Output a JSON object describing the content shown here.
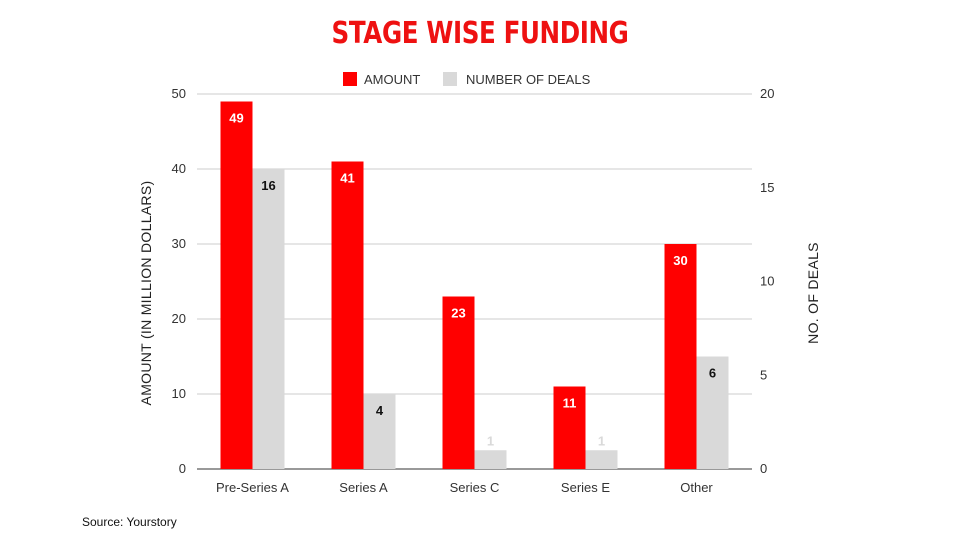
{
  "title": "STAGE WISE FUNDING",
  "source": "Source: Yourstory",
  "colors": {
    "amount": "#ff0000",
    "deals": "#d9d9d9",
    "title": "#ee1111"
  },
  "chart_data": {
    "type": "bar",
    "categories": [
      "Pre-Series A",
      "Series A",
      "Series C",
      "Series E",
      "Other"
    ],
    "series": [
      {
        "name": "AMOUNT",
        "axis": "left",
        "values": [
          49,
          41,
          23,
          11,
          30
        ]
      },
      {
        "name": "NUMBER OF DEALS",
        "axis": "right",
        "values": [
          16,
          4,
          1,
          1,
          6
        ]
      }
    ],
    "ylabel": "AMOUNT (IN MILLION DOLLARS)",
    "ylabel_right": "NO. OF DEALS",
    "ylim": [
      0,
      50
    ],
    "ylim_right": [
      0,
      20
    ],
    "yticks": [
      0,
      10,
      20,
      30,
      40,
      50
    ],
    "yticks_right": [
      0,
      5,
      10,
      15,
      20
    ],
    "grid": true,
    "legend": "top-center"
  }
}
